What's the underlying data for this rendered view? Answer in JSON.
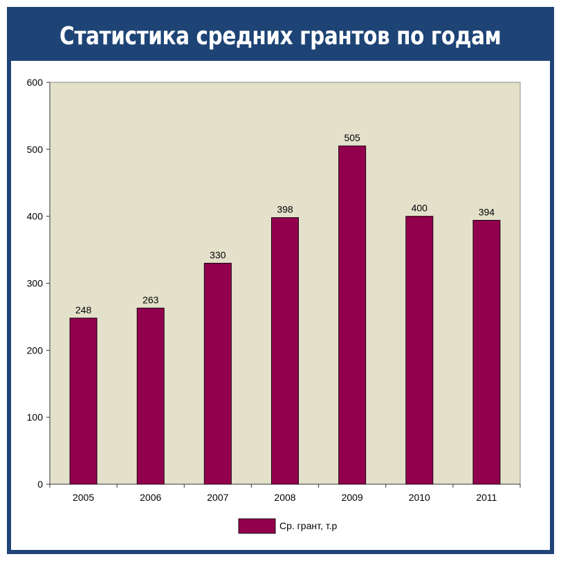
{
  "title": "Статистика средних грантов по годам",
  "colors": {
    "frame": "#1e4476",
    "plot_bg": "#e4e1cb",
    "bar": "#92004d"
  },
  "chart_data": {
    "type": "bar",
    "title": "Статистика средних грантов по годам",
    "categories": [
      "2005",
      "2006",
      "2007",
      "2008",
      "2009",
      "2010",
      "2011"
    ],
    "series": [
      {
        "name": "Ср. грант, т.р",
        "values": [
          248,
          263,
          330,
          398,
          505,
          400,
          394
        ]
      }
    ],
    "ylim": [
      0,
      600
    ],
    "yticks": [
      0,
      100,
      200,
      300,
      400,
      500,
      600
    ],
    "xlabel": "",
    "ylabel": "",
    "grid": false,
    "data_labels": true,
    "legend": "bottom"
  }
}
